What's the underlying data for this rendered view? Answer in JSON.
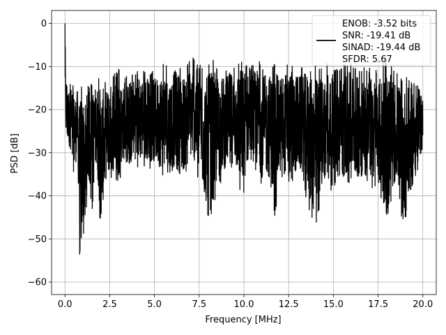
{
  "chart_data": {
    "type": "line",
    "title": "",
    "xlabel": "Frequency [MHz]",
    "ylabel": "PSD [dB]",
    "xlim": [
      -0.75,
      20.75
    ],
    "ylim": [
      -62.9,
      3.0
    ],
    "x_ticks": [
      0.0,
      2.5,
      5.0,
      7.5,
      10.0,
      12.5,
      15.0,
      17.5,
      20.0
    ],
    "x_tick_labels": [
      "0.0",
      "2.5",
      "5.0",
      "7.5",
      "10.0",
      "12.5",
      "15.0",
      "17.5",
      "20.0"
    ],
    "y_ticks": [
      0,
      -10,
      -20,
      -30,
      -40,
      -50,
      -60
    ],
    "y_tick_labels": [
      "0",
      "−10",
      "−20",
      "−30",
      "−40",
      "−50",
      "−60"
    ],
    "grid": true,
    "legend_position": "top-right",
    "line_color": "#000000",
    "series": [
      {
        "name": "",
        "x": [
          0.0,
          0.02,
          0.04,
          0.06,
          0.08,
          0.1,
          0.15,
          0.2,
          0.25,
          0.3,
          0.35,
          0.4,
          0.5,
          0.6,
          0.7,
          0.85,
          1.0,
          1.1,
          1.3,
          1.5,
          1.75,
          2.0,
          2.3,
          2.6,
          3.0,
          3.25,
          3.5,
          3.8,
          4.2,
          4.5,
          5.0,
          5.5,
          5.8,
          6.2,
          6.5,
          6.9,
          7.2,
          7.5,
          7.95,
          8.2,
          8.7,
          9.2,
          9.5,
          9.9,
          10.3,
          10.8,
          11.0,
          11.4,
          11.7,
          12.0,
          12.5,
          13.2,
          13.7,
          14.0,
          14.4,
          14.7,
          15.0,
          15.5,
          16.0,
          16.5,
          17.0,
          17.5,
          17.95,
          18.5,
          19.0,
          19.5,
          20.0
        ],
        "upper": [
          0.0,
          -5.5,
          -16.0,
          -8.0,
          -10.0,
          -11.0,
          -13.5,
          -14.0,
          -15.0,
          -13.0,
          -15.0,
          -13.5,
          -14.5,
          -15.0,
          -14.0,
          -14.5,
          -13.0,
          -15.0,
          -13.5,
          -14.0,
          -12.5,
          -12.0,
          -13.5,
          -12.0,
          -10.5,
          -13.0,
          -12.0,
          -11.0,
          -10.0,
          -10.5,
          -11.0,
          -9.0,
          -10.5,
          -8.5,
          -10.0,
          -9.0,
          -7.0,
          -9.5,
          -9.5,
          -8.0,
          -10.5,
          -9.5,
          -9.0,
          -7.5,
          -10.0,
          -8.0,
          -10.0,
          -9.5,
          -8.5,
          -10.0,
          -8.5,
          -10.0,
          -8.0,
          -9.5,
          -10.0,
          -8.5,
          -11.0,
          -9.5,
          -9.0,
          -10.5,
          -10.0,
          -11.0,
          -7.5,
          -11.5,
          -12.0,
          -13.0,
          -16.0
        ],
        "lower": [
          -16.0,
          -20.0,
          -25.0,
          -30.0,
          -31.5,
          -28.0,
          -31.0,
          -27.5,
          -30.0,
          -38.0,
          -30.0,
          -37.0,
          -36.0,
          -34.0,
          -31.0,
          -59.7,
          -50.5,
          -48.0,
          -38.0,
          -44.0,
          -34.0,
          -48.5,
          -38.0,
          -36.0,
          -37.5,
          -33.0,
          -35.0,
          -33.0,
          -34.0,
          -33.0,
          -34.5,
          -36.0,
          -37.0,
          -35.0,
          -38.0,
          -33.0,
          -34.0,
          -37.0,
          -46.0,
          -44.0,
          -37.0,
          -34.0,
          -35.0,
          -41.5,
          -33.0,
          -36.0,
          -37.5,
          -38.0,
          -45.5,
          -37.0,
          -37.5,
          -37.0,
          -44.0,
          -49.0,
          -38.0,
          -36.5,
          -41.0,
          -38.0,
          -37.0,
          -38.0,
          -38.0,
          -39.0,
          -46.0,
          -38.0,
          -49.0,
          -38.0,
          -30.0
        ]
      }
    ],
    "legend_lines": [
      "ENOB: -3.52 bits",
      "SNR: -19.41 dB",
      "SINAD: -19.44 dB",
      "SFDR: 5.67"
    ]
  }
}
